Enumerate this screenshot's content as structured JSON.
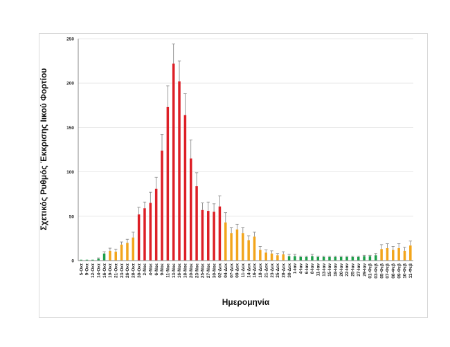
{
  "chart_data": {
    "type": "bar",
    "title": "",
    "xlabel": "Ημερομηνία",
    "ylabel": "Σχετικός Ρυθμός Έκκρισης Ιικού Φορτίου",
    "ylim": [
      0,
      250
    ],
    "yticks": [
      0,
      50,
      100,
      150,
      200,
      250
    ],
    "grid": true,
    "colors": {
      "green": "#1e9e4a",
      "orange": "#f2a51c",
      "red": "#dd1f26",
      "error": "#7f7f7f",
      "grid": "#e3e3e3",
      "axis": "#888888"
    },
    "categories": [
      "5-Οκτ",
      "9-Οκτ",
      "12-Οκτ",
      "14-Οκτ",
      "16-Οκτ",
      "19-Οκτ",
      "21-Οκτ",
      "23-Οκτ",
      "26-Οκτ",
      "28-Οκτ",
      "30-Οκτ",
      "2-Νοε",
      "4-Νοε",
      "6-Νοε",
      "9-Νοε",
      "11-Νοε",
      "13-Νοε",
      "16-Νοε",
      "18-Νοε",
      "20-Νοε",
      "23-Νοε",
      "25-Νοε",
      "27-Νοε",
      "30-Νοε",
      "02-Δεκ",
      "04-Δεκ",
      "07-Δεκ",
      "09-Δεκ",
      "11-Δεκ",
      "14-Δεκ",
      "16-Δεκ",
      "18-Δεκ",
      "21-Δεκ",
      "23-Δεκ",
      "25-Δεκ",
      "28-Δεκ",
      "30-Δεκ",
      "1-Ιαν",
      "4-Ιαν",
      "6-Ιαν",
      "8-Ιαν",
      "11-Ιαν",
      "13-Ιαν",
      "15-Ιαν",
      "18-Ιαν",
      "20-Ιαν",
      "22-Ιαν",
      "25-Ιαν",
      "27-Ιαν",
      "29-Ιαν",
      "01-Φεβ",
      "03-Φεβ",
      "05-Φεβ",
      "07-Φεβ",
      "08-Φεβ",
      "09-Φεβ",
      "10-Φεβ",
      "11-Φεβ"
    ],
    "values": [
      1,
      1,
      1,
      2,
      8,
      11,
      10,
      18,
      20,
      26,
      52,
      59,
      65,
      81,
      124,
      173,
      222,
      202,
      164,
      115,
      84,
      57,
      56,
      55,
      61,
      43,
      31,
      35,
      31,
      23,
      27,
      12,
      9,
      8,
      6,
      7,
      5,
      5,
      4,
      4,
      5,
      4,
      4,
      4,
      4,
      4,
      4,
      4,
      4,
      5,
      5,
      6,
      13,
      14,
      12,
      14,
      11,
      17
    ],
    "errors": [
      0,
      0,
      0,
      1,
      2,
      3,
      3,
      3,
      4,
      6,
      8,
      7,
      12,
      13,
      18,
      24,
      22,
      23,
      24,
      21,
      15,
      8,
      10,
      9,
      12,
      11,
      6,
      6,
      6,
      5,
      5,
      4,
      3,
      3,
      2,
      3,
      2,
      2,
      1,
      1,
      2,
      1,
      1,
      1,
      1,
      1,
      1,
      1,
      1,
      1,
      1,
      2,
      5,
      5,
      4,
      5,
      4,
      5
    ],
    "bar_colors": [
      "green",
      "green",
      "green",
      "green",
      "green",
      "orange",
      "orange",
      "orange",
      "orange",
      "orange",
      "red",
      "red",
      "red",
      "red",
      "red",
      "red",
      "red",
      "red",
      "red",
      "red",
      "red",
      "red",
      "red",
      "red",
      "red",
      "orange",
      "orange",
      "orange",
      "orange",
      "orange",
      "orange",
      "orange",
      "orange",
      "orange",
      "orange",
      "orange",
      "green",
      "green",
      "green",
      "green",
      "green",
      "green",
      "green",
      "green",
      "green",
      "green",
      "green",
      "green",
      "green",
      "green",
      "green",
      "green",
      "orange",
      "orange",
      "orange",
      "orange",
      "orange",
      "orange"
    ]
  }
}
